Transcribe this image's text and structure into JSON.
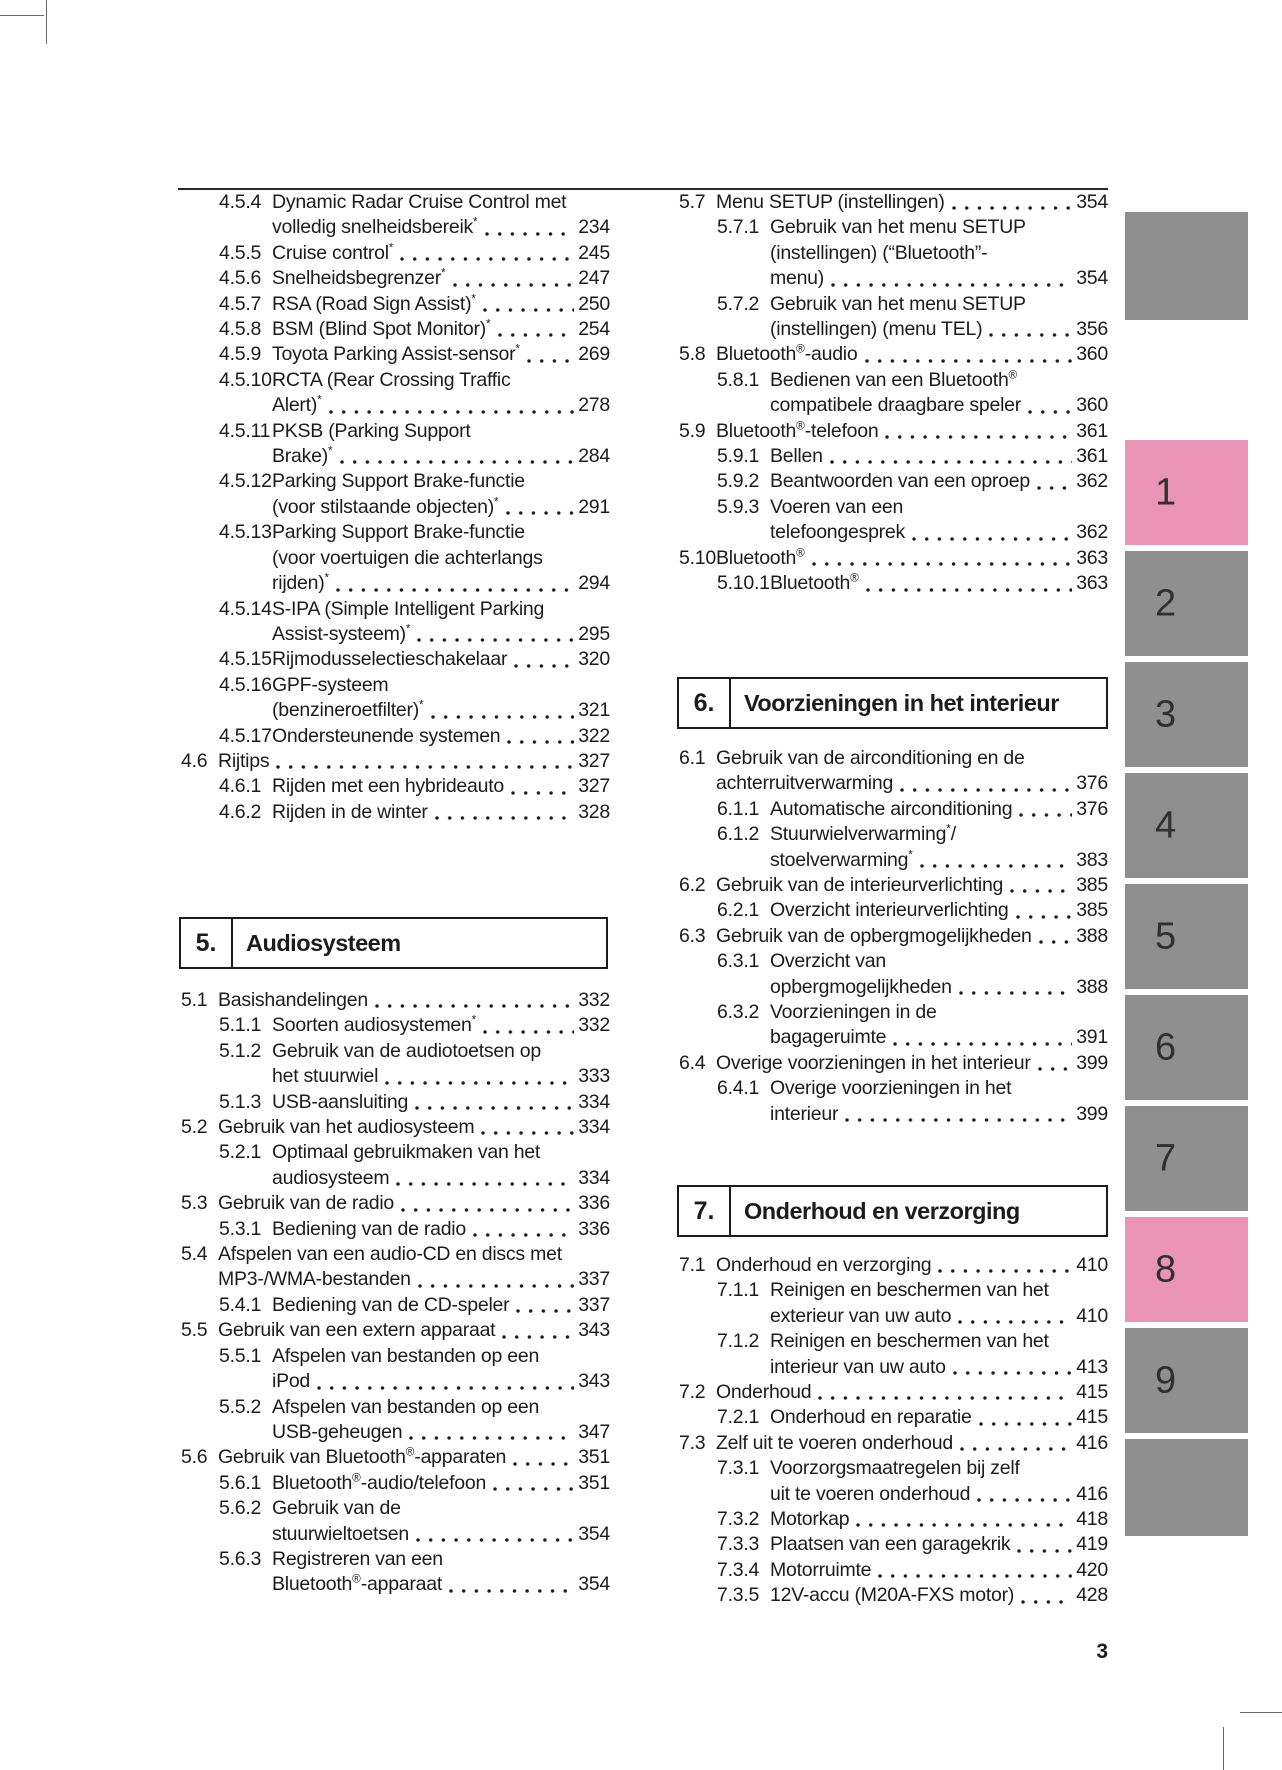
{
  "page": {
    "number": "3"
  },
  "colors": {
    "tab_pink": "#e994b4",
    "tab_gray": "#8f8f8f",
    "text": "#1c1c1c"
  },
  "toc": {
    "left": {
      "seg1": [
        {
          "num": "4.5.4",
          "level": 3,
          "lines": [
            "Dynamic Radar Cruise Control met",
            "volledig snelheidsbereik*"
          ],
          "page": "234"
        },
        {
          "num": "4.5.5",
          "level": 3,
          "lines": [
            "Cruise control*"
          ],
          "page": "245"
        },
        {
          "num": "4.5.6",
          "level": 3,
          "lines": [
            "Snelheidsbegrenzer*"
          ],
          "page": "247"
        },
        {
          "num": "4.5.7",
          "level": 3,
          "lines": [
            "RSA (Road Sign Assist)*"
          ],
          "page": "250"
        },
        {
          "num": "4.5.8",
          "level": 3,
          "lines": [
            "BSM (Blind Spot Monitor)*"
          ],
          "page": "254"
        },
        {
          "num": "4.5.9",
          "level": 3,
          "lines": [
            "Toyota Parking Assist-sensor*"
          ],
          "page": "269"
        },
        {
          "num": "4.5.10",
          "level": 3,
          "lines": [
            "RCTA (Rear Crossing Traffic",
            "Alert)*"
          ],
          "page": "278"
        },
        {
          "num": "4.5.11",
          "level": 3,
          "lines": [
            "PKSB (Parking Support",
            "Brake)*"
          ],
          "page": "284"
        },
        {
          "num": "4.5.12",
          "level": 3,
          "lines": [
            "Parking Support Brake-functie",
            "(voor stilstaande objecten)*"
          ],
          "page": "291"
        },
        {
          "num": "4.5.13",
          "level": 3,
          "lines": [
            "Parking Support Brake-functie",
            "(voor voertuigen die achterlangs",
            "rijden)*"
          ],
          "page": "294"
        },
        {
          "num": "4.5.14",
          "level": 3,
          "lines": [
            "S-IPA (Simple Intelligent Parking",
            "Assist-systeem)*"
          ],
          "page": "295"
        },
        {
          "num": "4.5.15",
          "level": 3,
          "lines": [
            "Rijmodusselectieschakelaar"
          ],
          "page": "320"
        },
        {
          "num": "4.5.16",
          "level": 3,
          "lines": [
            "GPF-systeem",
            "(benzineroetfilter)*"
          ],
          "page": "321"
        },
        {
          "num": "4.5.17",
          "level": 3,
          "lines": [
            "Ondersteunende systemen"
          ],
          "page": "322"
        },
        {
          "num": "4.6",
          "level": 2,
          "lines": [
            "Rijtips"
          ],
          "page": "327"
        },
        {
          "num": "4.6.1",
          "level": 3,
          "lines": [
            "Rijden met een hybrideauto"
          ],
          "page": "327"
        },
        {
          "num": "4.6.2",
          "level": 3,
          "lines": [
            "Rijden in de winter"
          ],
          "page": "328"
        }
      ],
      "section": {
        "num": "5.",
        "title": "Audiosysteem"
      },
      "seg2": [
        {
          "num": "5.1",
          "level": 2,
          "lines": [
            "Basishandelingen"
          ],
          "page": "332"
        },
        {
          "num": "5.1.1",
          "level": 3,
          "lines": [
            "Soorten audiosystemen*"
          ],
          "page": "332"
        },
        {
          "num": "5.1.2",
          "level": 3,
          "lines": [
            "Gebruik van de audiotoetsen op",
            "het stuurwiel"
          ],
          "page": "333"
        },
        {
          "num": "5.1.3",
          "level": 3,
          "lines": [
            "USB-aansluiting"
          ],
          "page": "334"
        },
        {
          "num": "5.2",
          "level": 2,
          "lines": [
            "Gebruik van het audiosysteem"
          ],
          "page": "334"
        },
        {
          "num": "5.2.1",
          "level": 3,
          "lines": [
            "Optimaal gebruikmaken van het",
            "audiosysteem"
          ],
          "page": "334"
        },
        {
          "num": "5.3",
          "level": 2,
          "lines": [
            "Gebruik van de radio"
          ],
          "page": "336"
        },
        {
          "num": "5.3.1",
          "level": 3,
          "lines": [
            "Bediening van de radio"
          ],
          "page": "336"
        },
        {
          "num": "5.4",
          "level": 2,
          "lines": [
            "Afspelen van een audio-CD en discs met",
            "MP3-/WMA-bestanden"
          ],
          "page": "337"
        },
        {
          "num": "5.4.1",
          "level": 3,
          "lines": [
            "Bediening van de CD-speler"
          ],
          "page": "337"
        },
        {
          "num": "5.5",
          "level": 2,
          "lines": [
            "Gebruik van een extern apparaat"
          ],
          "page": "343"
        },
        {
          "num": "5.5.1",
          "level": 3,
          "lines": [
            "Afspelen van bestanden op een",
            "iPod"
          ],
          "page": "343"
        },
        {
          "num": "5.5.2",
          "level": 3,
          "lines": [
            "Afspelen van bestanden op een",
            "USB-geheugen"
          ],
          "page": "347"
        },
        {
          "num": "5.6",
          "level": 2,
          "lines": [
            "Gebruik van Bluetooth®-apparaten"
          ],
          "page": "351"
        },
        {
          "num": "5.6.1",
          "level": 3,
          "lines": [
            "Bluetooth®-audio/telefoon"
          ],
          "page": "351"
        },
        {
          "num": "5.6.2",
          "level": 3,
          "lines": [
            "Gebruik van de",
            "stuurwieltoetsen"
          ],
          "page": "354"
        },
        {
          "num": "5.6.3",
          "level": 3,
          "lines": [
            "Registreren van een",
            "Bluetooth®-apparaat"
          ],
          "page": "354"
        }
      ]
    },
    "right": {
      "seg1": [
        {
          "num": "5.7",
          "level": 2,
          "lines": [
            "Menu SETUP (instellingen)"
          ],
          "page": "354"
        },
        {
          "num": "5.7.1",
          "level": 3,
          "lines": [
            "Gebruik van het menu SETUP",
            "(instellingen) (“Bluetooth”-",
            "menu)"
          ],
          "page": "354"
        },
        {
          "num": "5.7.2",
          "level": 3,
          "lines": [
            "Gebruik van het menu SETUP",
            "(instellingen) (menu TEL)"
          ],
          "page": "356"
        },
        {
          "num": "5.8",
          "level": 2,
          "lines": [
            "Bluetooth®-audio"
          ],
          "page": "360"
        },
        {
          "num": "5.8.1",
          "level": 3,
          "lines": [
            "Bedienen van een Bluetooth®",
            "compatibele draagbare speler"
          ],
          "page": "360"
        },
        {
          "num": "5.9",
          "level": 2,
          "lines": [
            "Bluetooth®-telefoon"
          ],
          "page": "361"
        },
        {
          "num": "5.9.1",
          "level": 3,
          "lines": [
            "Bellen"
          ],
          "page": "361"
        },
        {
          "num": "5.9.2",
          "level": 3,
          "lines": [
            "Beantwoorden van een oproep"
          ],
          "page": "362"
        },
        {
          "num": "5.9.3",
          "level": 3,
          "lines": [
            "Voeren van een",
            "telefoongesprek"
          ],
          "page": "362"
        },
        {
          "num": "5.10",
          "level": 2,
          "lines": [
            "Bluetooth®"
          ],
          "page": "363"
        },
        {
          "num": "5.10.1",
          "level": 3,
          "lines": [
            "Bluetooth®"
          ],
          "page": "363"
        }
      ],
      "section6": {
        "num": "6.",
        "title": "Voorzieningen in het interieur"
      },
      "seg2": [
        {
          "num": "6.1",
          "level": 2,
          "lines": [
            "Gebruik van de airconditioning en de",
            "achterruitverwarming"
          ],
          "page": "376"
        },
        {
          "num": "6.1.1",
          "level": 3,
          "lines": [
            "Automatische airconditioning"
          ],
          "page": "376"
        },
        {
          "num": "6.1.2",
          "level": 3,
          "lines": [
            "Stuurwielverwarming*/",
            "stoelverwarming*"
          ],
          "page": "383"
        },
        {
          "num": "6.2",
          "level": 2,
          "lines": [
            "Gebruik van de interieurverlichting"
          ],
          "page": "385"
        },
        {
          "num": "6.2.1",
          "level": 3,
          "lines": [
            "Overzicht interieurverlichting"
          ],
          "page": "385"
        },
        {
          "num": "6.3",
          "level": 2,
          "lines": [
            "Gebruik van de opbergmogelijkheden"
          ],
          "page": "388"
        },
        {
          "num": "6.3.1",
          "level": 3,
          "lines": [
            "Overzicht van",
            "opbergmogelijkheden"
          ],
          "page": "388"
        },
        {
          "num": "6.3.2",
          "level": 3,
          "lines": [
            "Voorzieningen in de",
            "bagageruimte"
          ],
          "page": "391"
        },
        {
          "num": "6.4",
          "level": 2,
          "lines": [
            "Overige voorzieningen in het interieur"
          ],
          "page": "399"
        },
        {
          "num": "6.4.1",
          "level": 3,
          "lines": [
            "Overige voorzieningen in het",
            "interieur"
          ],
          "page": "399"
        }
      ],
      "section7": {
        "num": "7.",
        "title": "Onderhoud en verzorging"
      },
      "seg3": [
        {
          "num": "7.1",
          "level": 2,
          "lines": [
            "Onderhoud en verzorging"
          ],
          "page": "410"
        },
        {
          "num": "7.1.1",
          "level": 3,
          "lines": [
            "Reinigen en beschermen van het",
            "exterieur van uw auto"
          ],
          "page": "410"
        },
        {
          "num": "7.1.2",
          "level": 3,
          "lines": [
            "Reinigen en beschermen van het",
            "interieur van uw auto"
          ],
          "page": "413"
        },
        {
          "num": "7.2",
          "level": 2,
          "lines": [
            "Onderhoud"
          ],
          "page": "415"
        },
        {
          "num": "7.2.1",
          "level": 3,
          "lines": [
            "Onderhoud en reparatie"
          ],
          "page": "415"
        },
        {
          "num": "7.3",
          "level": 2,
          "lines": [
            "Zelf uit te voeren onderhoud"
          ],
          "page": "416"
        },
        {
          "num": "7.3.1",
          "level": 3,
          "lines": [
            "Voorzorgsmaatregelen bij zelf",
            "uit te voeren onderhoud"
          ],
          "page": "416"
        },
        {
          "num": "7.3.2",
          "level": 3,
          "lines": [
            "Motorkap"
          ],
          "page": "418"
        },
        {
          "num": "7.3.3",
          "level": 3,
          "lines": [
            "Plaatsen van een garagekrik"
          ],
          "page": "419"
        },
        {
          "num": "7.3.4",
          "level": 3,
          "lines": [
            "Motorruimte"
          ],
          "page": "420"
        },
        {
          "num": "7.3.5",
          "level": 3,
          "lines": [
            "12V-accu (M20A-FXS motor)"
          ],
          "page": "428"
        }
      ]
    }
  },
  "tabs": [
    {
      "label": "",
      "highlighted": false
    },
    {
      "label": "1",
      "highlighted": true
    },
    {
      "label": "2",
      "highlighted": false
    },
    {
      "label": "3",
      "highlighted": false
    },
    {
      "label": "4",
      "highlighted": false
    },
    {
      "label": "5",
      "highlighted": false
    },
    {
      "label": "6",
      "highlighted": false
    },
    {
      "label": "7",
      "highlighted": false
    },
    {
      "label": "8",
      "highlighted": true
    },
    {
      "label": "9",
      "highlighted": false
    },
    {
      "label": "",
      "highlighted": false
    }
  ]
}
